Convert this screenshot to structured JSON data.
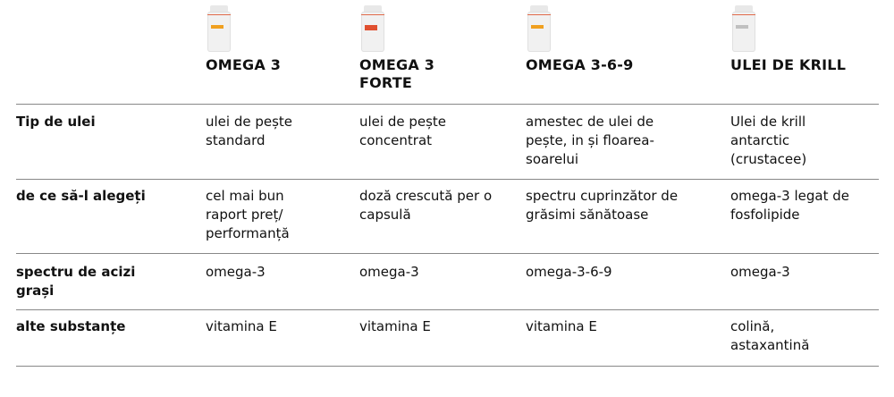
{
  "products": [
    {
      "name": "OMEGA 3",
      "label_color": "#f0a020"
    },
    {
      "name": "OMEGA 3 FORTE",
      "label_color": "#e05030"
    },
    {
      "name": "OMEGA 3-6-9",
      "label_color": "#f0a020"
    },
    {
      "name": "ULEI DE KRILL",
      "label_color": "#c0c0c0"
    }
  ],
  "rows": [
    {
      "label": "Tip de ulei",
      "values": [
        "ulei de pește standard",
        "ulei de pește concentrat",
        "amestec de ulei de pește, in și floarea-soarelui",
        "Ulei de krill antarctic (crustacee)"
      ]
    },
    {
      "label": "de ce să-l alegeți",
      "values": [
        "cel mai bun raport preț/ performanță",
        "doză crescută per o capsulă",
        "spectru cuprinzător de grăsimi sănătoase",
        "omega-3 legat de fosfolipide"
      ]
    },
    {
      "label": "spectru de acizi grași",
      "values": [
        "omega-3",
        "omega-3",
        "omega-3-6-9",
        "omega-3"
      ]
    },
    {
      "label": "alte substanțe",
      "values": [
        "vitamina E",
        "vitamina E",
        "vitamina E",
        "colină, astaxantină"
      ]
    }
  ]
}
